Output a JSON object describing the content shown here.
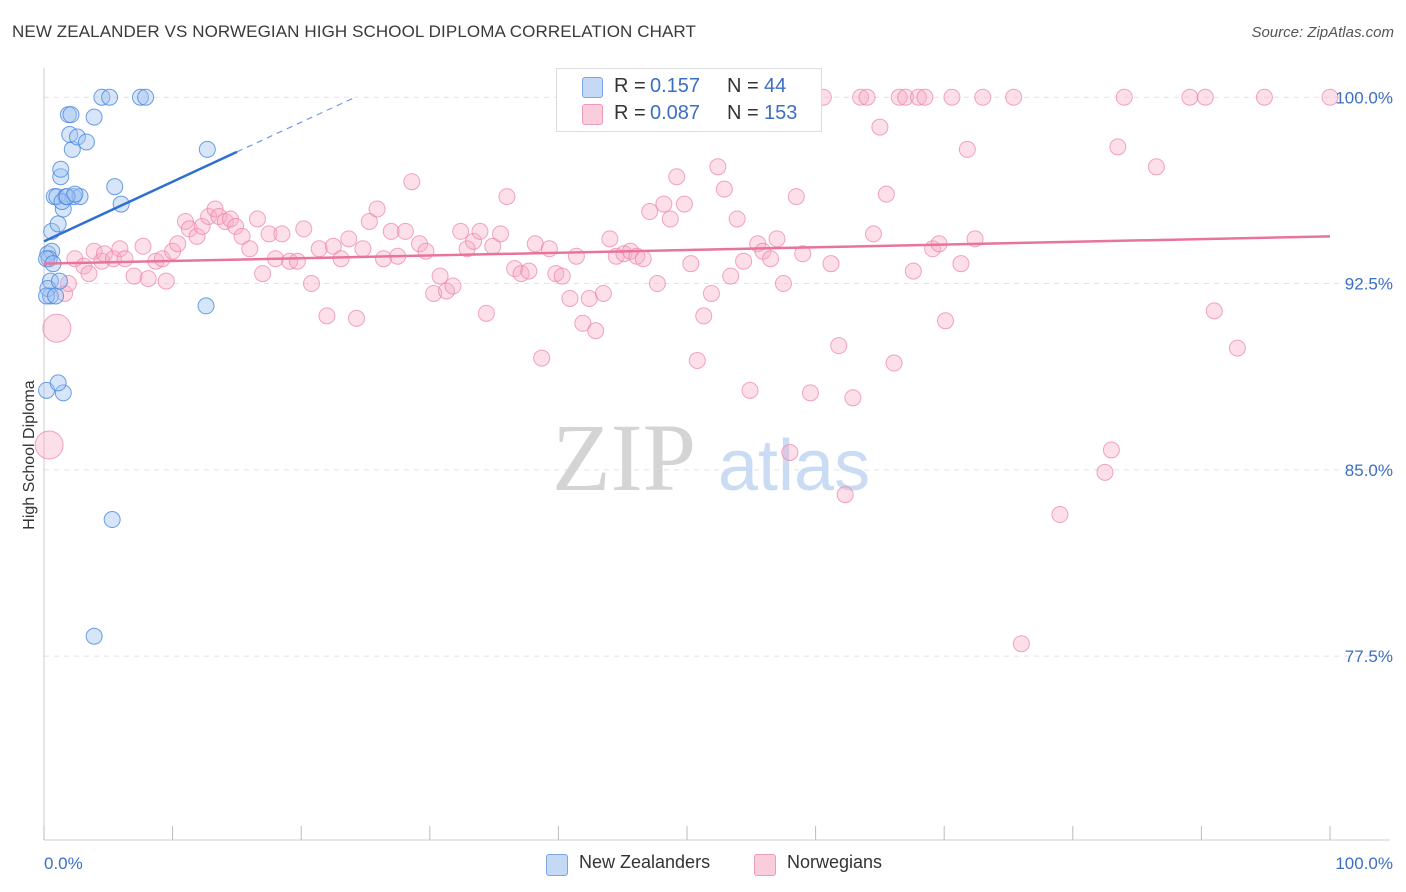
{
  "title": "NEW ZEALANDER VS NORWEGIAN HIGH SCHOOL DIPLOMA CORRELATION CHART",
  "source": "Source: ZipAtlas.com",
  "watermark": {
    "zip": "ZIP",
    "atlas": "atlas"
  },
  "legend": {
    "rows": [
      {
        "r_label": "R =",
        "r_value": "0.157",
        "n_label": "N =",
        "n_value": "44"
      },
      {
        "r_label": "R =",
        "r_value": "0.087",
        "n_label": "N =",
        "n_value": "153"
      }
    ]
  },
  "bottom_legend": {
    "series1": "New Zealanders",
    "series2": "Norwegians"
  },
  "chart_data": {
    "type": "scatter",
    "title": "NEW ZEALANDER VS NORWEGIAN HIGH SCHOOL DIPLOMA CORRELATION CHART",
    "xlabel": "",
    "ylabel": "High School Diploma",
    "xlim": [
      0,
      100
    ],
    "ylim": [
      70.5,
      101.5
    ],
    "x_tick_labels": [
      "0.0%",
      "100.0%"
    ],
    "y_ticks": [
      100,
      92.5,
      85,
      77.5
    ],
    "y_tick_labels": [
      "100.0%",
      "92.5%",
      "85.0%",
      "77.5%"
    ],
    "colors": {
      "new_zealanders": "#4a86e0",
      "norwegians": "#ee82a6"
    },
    "series": [
      {
        "name": "New Zealanders",
        "r": 0.157,
        "n": 44,
        "trend": {
          "x": [
            0.0,
            15.0
          ],
          "y": [
            94.2,
            97.8
          ],
          "dashed_to": [
            24.2,
            100.0
          ]
        },
        "points": [
          [
            0.3,
            93.7
          ],
          [
            0.6,
            93.8
          ],
          [
            0.4,
            93.5
          ],
          [
            0.5,
            92.6
          ],
          [
            0.5,
            92.0
          ],
          [
            0.3,
            92.3
          ],
          [
            0.2,
            92.0
          ],
          [
            0.9,
            92.0
          ],
          [
            1.2,
            92.6
          ],
          [
            0.6,
            94.6
          ],
          [
            1.1,
            94.9
          ],
          [
            1.5,
            95.5
          ],
          [
            0.8,
            96.0
          ],
          [
            1.0,
            96.0
          ],
          [
            1.7,
            96.0
          ],
          [
            2.3,
            96.0
          ],
          [
            2.8,
            96.0
          ],
          [
            1.4,
            95.8
          ],
          [
            1.3,
            96.8
          ],
          [
            1.3,
            97.1
          ],
          [
            2.2,
            97.9
          ],
          [
            2.0,
            98.5
          ],
          [
            2.6,
            98.4
          ],
          [
            3.3,
            98.2
          ],
          [
            1.9,
            99.3
          ],
          [
            2.1,
            99.3
          ],
          [
            3.9,
            99.2
          ],
          [
            4.5,
            100.0
          ],
          [
            5.1,
            100.0
          ],
          [
            7.5,
            100.0
          ],
          [
            7.9,
            100.0
          ],
          [
            5.5,
            96.4
          ],
          [
            6.0,
            95.7
          ],
          [
            12.7,
            97.9
          ],
          [
            12.6,
            91.6
          ],
          [
            0.2,
            88.2
          ],
          [
            1.5,
            88.1
          ],
          [
            1.1,
            88.5
          ],
          [
            5.3,
            83.0
          ],
          [
            3.9,
            78.3
          ],
          [
            0.2,
            93.5
          ],
          [
            1.8,
            96.0
          ],
          [
            2.4,
            96.1
          ],
          [
            0.7,
            93.3
          ]
        ]
      },
      {
        "name": "Norwegians",
        "r": 0.087,
        "n": 153,
        "trend": {
          "x": [
            0.0,
            100.0
          ],
          "y": [
            93.3,
            94.4
          ]
        },
        "points": [
          [
            1.0,
            90.7
          ],
          [
            0.4,
            86.0
          ],
          [
            1.6,
            92.1
          ],
          [
            1.9,
            92.5
          ],
          [
            2.4,
            93.5
          ],
          [
            3.1,
            93.2
          ],
          [
            3.5,
            92.9
          ],
          [
            3.9,
            93.8
          ],
          [
            4.5,
            93.4
          ],
          [
            4.7,
            93.7
          ],
          [
            5.4,
            93.5
          ],
          [
            5.9,
            93.9
          ],
          [
            6.3,
            93.5
          ],
          [
            7.0,
            92.8
          ],
          [
            7.7,
            94.0
          ],
          [
            8.1,
            92.7
          ],
          [
            8.7,
            93.4
          ],
          [
            9.2,
            93.5
          ],
          [
            9.5,
            92.6
          ],
          [
            10.0,
            93.8
          ],
          [
            10.4,
            94.1
          ],
          [
            11.0,
            95.0
          ],
          [
            11.3,
            94.7
          ],
          [
            11.9,
            94.4
          ],
          [
            12.3,
            94.8
          ],
          [
            12.8,
            95.2
          ],
          [
            13.3,
            95.5
          ],
          [
            13.6,
            95.2
          ],
          [
            14.1,
            95.0
          ],
          [
            14.5,
            95.1
          ],
          [
            14.9,
            94.8
          ],
          [
            15.4,
            94.4
          ],
          [
            16.0,
            93.9
          ],
          [
            16.6,
            95.1
          ],
          [
            17.0,
            92.9
          ],
          [
            17.5,
            94.5
          ],
          [
            18.0,
            93.5
          ],
          [
            18.5,
            94.5
          ],
          [
            19.1,
            93.4
          ],
          [
            19.7,
            93.4
          ],
          [
            20.2,
            94.7
          ],
          [
            20.8,
            92.5
          ],
          [
            21.4,
            93.9
          ],
          [
            22.0,
            91.2
          ],
          [
            22.5,
            94.0
          ],
          [
            23.1,
            93.5
          ],
          [
            23.7,
            94.3
          ],
          [
            24.3,
            91.1
          ],
          [
            24.8,
            93.9
          ],
          [
            25.3,
            95.0
          ],
          [
            25.9,
            95.5
          ],
          [
            26.4,
            93.5
          ],
          [
            27.0,
            94.6
          ],
          [
            27.5,
            93.6
          ],
          [
            28.1,
            94.6
          ],
          [
            28.6,
            96.6
          ],
          [
            29.2,
            94.1
          ],
          [
            29.7,
            93.8
          ],
          [
            30.3,
            92.1
          ],
          [
            30.8,
            92.8
          ],
          [
            31.3,
            92.2
          ],
          [
            31.8,
            92.4
          ],
          [
            32.4,
            94.6
          ],
          [
            32.9,
            93.9
          ],
          [
            33.4,
            94.2
          ],
          [
            33.9,
            94.6
          ],
          [
            34.4,
            91.3
          ],
          [
            34.9,
            94.0
          ],
          [
            35.5,
            94.5
          ],
          [
            36.0,
            96.0
          ],
          [
            36.6,
            93.1
          ],
          [
            37.1,
            92.9
          ],
          [
            37.7,
            93.0
          ],
          [
            38.2,
            94.1
          ],
          [
            38.7,
            89.5
          ],
          [
            39.3,
            93.9
          ],
          [
            39.8,
            92.9
          ],
          [
            40.3,
            92.8
          ],
          [
            40.9,
            91.9
          ],
          [
            41.4,
            93.6
          ],
          [
            41.9,
            90.9
          ],
          [
            42.4,
            91.9
          ],
          [
            42.9,
            90.6
          ],
          [
            43.5,
            92.1
          ],
          [
            44.0,
            94.3
          ],
          [
            44.5,
            93.6
          ],
          [
            45.1,
            93.7
          ],
          [
            45.6,
            93.8
          ],
          [
            46.1,
            93.6
          ],
          [
            46.6,
            93.5
          ],
          [
            47.1,
            95.4
          ],
          [
            47.7,
            92.5
          ],
          [
            48.2,
            95.7
          ],
          [
            48.7,
            95.1
          ],
          [
            49.2,
            96.8
          ],
          [
            49.8,
            95.7
          ],
          [
            50.3,
            93.3
          ],
          [
            50.8,
            89.4
          ],
          [
            51.3,
            91.2
          ],
          [
            51.9,
            92.1
          ],
          [
            52.4,
            97.2
          ],
          [
            52.9,
            96.3
          ],
          [
            53.4,
            92.8
          ],
          [
            53.9,
            95.1
          ],
          [
            54.4,
            93.4
          ],
          [
            54.9,
            88.2
          ],
          [
            55.5,
            94.1
          ],
          [
            55.9,
            93.8
          ],
          [
            56.5,
            93.5
          ],
          [
            57.0,
            94.3
          ],
          [
            57.5,
            92.5
          ],
          [
            58.0,
            85.7
          ],
          [
            58.5,
            96.0
          ],
          [
            59.0,
            93.7
          ],
          [
            59.6,
            88.1
          ],
          [
            60.6,
            100.0
          ],
          [
            61.2,
            93.3
          ],
          [
            61.8,
            90.0
          ],
          [
            62.3,
            84.0
          ],
          [
            62.9,
            87.9
          ],
          [
            63.5,
            100.0
          ],
          [
            64.0,
            100.0
          ],
          [
            64.5,
            94.5
          ],
          [
            65.0,
            98.8
          ],
          [
            65.5,
            96.1
          ],
          [
            66.1,
            89.3
          ],
          [
            66.5,
            100.0
          ],
          [
            67.0,
            100.0
          ],
          [
            67.6,
            93.0
          ],
          [
            68.0,
            100.0
          ],
          [
            68.5,
            100.0
          ],
          [
            69.1,
            93.9
          ],
          [
            69.6,
            94.1
          ],
          [
            70.1,
            91.0
          ],
          [
            70.6,
            100.0
          ],
          [
            71.3,
            93.3
          ],
          [
            71.8,
            97.9
          ],
          [
            72.4,
            94.3
          ],
          [
            73.0,
            100.0
          ],
          [
            75.4,
            100.0
          ],
          [
            76.0,
            78.0
          ],
          [
            79.0,
            83.2
          ],
          [
            82.5,
            84.9
          ],
          [
            83.0,
            85.8
          ],
          [
            83.5,
            98.0
          ],
          [
            84.0,
            100.0
          ],
          [
            86.5,
            97.2
          ],
          [
            89.1,
            100.0
          ],
          [
            90.3,
            100.0
          ],
          [
            91.0,
            91.4
          ],
          [
            92.8,
            89.9
          ],
          [
            94.9,
            100.0
          ],
          [
            100.0,
            100.0
          ]
        ]
      }
    ]
  }
}
